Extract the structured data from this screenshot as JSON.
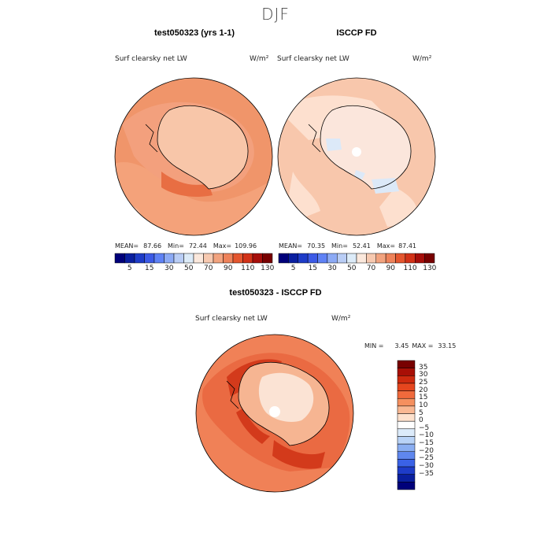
{
  "figure": {
    "title": "DJF"
  },
  "chart_data": [
    {
      "type": "heatmap",
      "title": "test050323 (yrs 1-1)",
      "subtitle": "Surf clearsky net LW",
      "units": "W/m²",
      "projection": "south polar stereographic",
      "stats": {
        "mean_label": "MEAN=",
        "mean": "87.66",
        "min_label": "Min=",
        "min": "72.44",
        "max_label": "Max=",
        "max": "109.96"
      },
      "colorbar": {
        "orientation": "horizontal",
        "tick_labels": [
          "5",
          "15",
          "30",
          "50",
          "70",
          "90",
          "110",
          "130"
        ],
        "levels": [
          0,
          5,
          10,
          15,
          20,
          30,
          40,
          50,
          60,
          70,
          80,
          90,
          100,
          110,
          120,
          130
        ],
        "colors": [
          "#00007a",
          "#0a1fa0",
          "#1e3cc8",
          "#3c5ae6",
          "#5f82f5",
          "#8caaf5",
          "#b9cdf5",
          "#dcebf8",
          "#fbe8dc",
          "#f7c9b0",
          "#f2a37f",
          "#ee825a",
          "#e4562f",
          "#d23218",
          "#a60e0a",
          "#780000"
        ]
      }
    },
    {
      "type": "heatmap",
      "title": "ISCCP FD",
      "subtitle": "Surf clearsky net LW",
      "units": "W/m²",
      "projection": "south polar stereographic",
      "stats": {
        "mean_label": "MEAN=",
        "mean": "70.35",
        "min_label": "Min=",
        "min": "52.41",
        "max_label": "Max=",
        "max": "87.41"
      },
      "colorbar": {
        "orientation": "horizontal",
        "tick_labels": [
          "5",
          "15",
          "30",
          "50",
          "70",
          "90",
          "110",
          "130"
        ],
        "levels": [
          0,
          5,
          10,
          15,
          20,
          30,
          40,
          50,
          60,
          70,
          80,
          90,
          100,
          110,
          120,
          130
        ],
        "colors": [
          "#00007a",
          "#0a1fa0",
          "#1e3cc8",
          "#3c5ae6",
          "#5f82f5",
          "#8caaf5",
          "#b9cdf5",
          "#dcebf8",
          "#fbe8dc",
          "#f7c9b0",
          "#f2a37f",
          "#ee825a",
          "#e4562f",
          "#d23218",
          "#a60e0a",
          "#780000"
        ]
      }
    },
    {
      "type": "heatmap",
      "title": "test050323 - ISCCP FD",
      "subtitle": "Surf clearsky net LW",
      "units": "W/m²",
      "projection": "south polar stereographic",
      "stats": {
        "min_label": "MIN =",
        "min": "3.45",
        "max_label": "MAX =",
        "max": "33.15"
      },
      "colorbar": {
        "orientation": "vertical",
        "tick_labels": [
          "35",
          "30",
          "25",
          "20",
          "15",
          "10",
          "5",
          "0",
          "−5",
          "−10",
          "−15",
          "−20",
          "−25",
          "−30",
          "−35"
        ],
        "colors": [
          "#780000",
          "#a80f06",
          "#cd2a0f",
          "#e5461e",
          "#f06a3c",
          "#f5905f",
          "#f9b893",
          "#fde1cd",
          "#ffffff",
          "#dcebfa",
          "#b9d3f7",
          "#8aaef2",
          "#5f87ee",
          "#3a62e6",
          "#1e3cc8",
          "#0a1f9e",
          "#00007a"
        ]
      }
    }
  ]
}
